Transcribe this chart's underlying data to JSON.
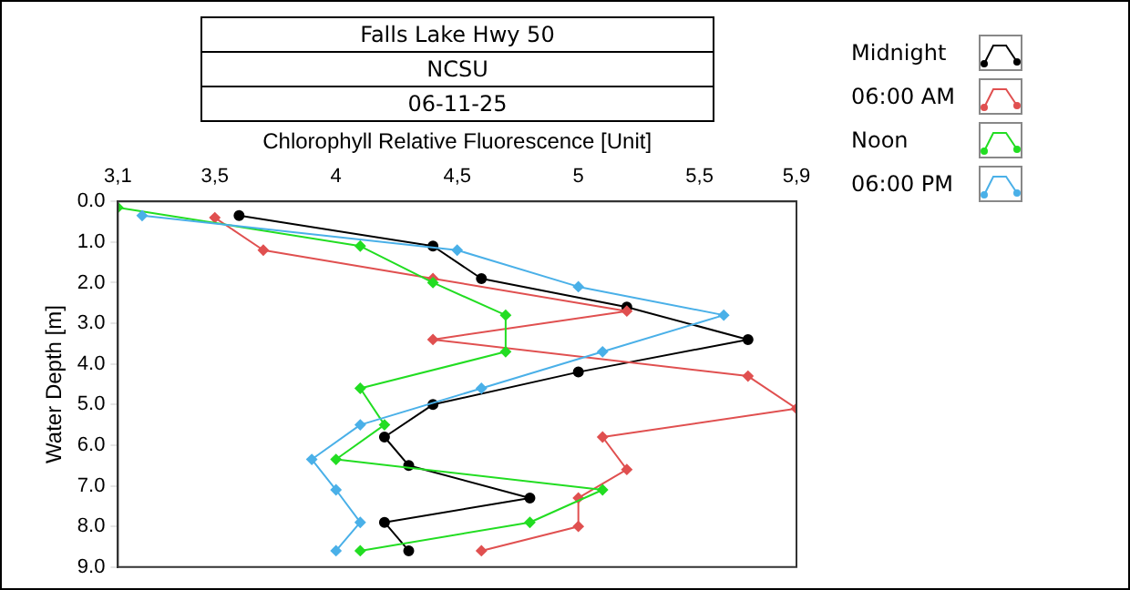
{
  "chart_data": {
    "type": "line",
    "title": "Falls Lake Hwy 50",
    "subtitle": "NCSU",
    "annotations": [
      "06-11-25"
    ],
    "xlabel": "Chlorophyll Relative Fluorescence [Unit]",
    "ylabel": "Water Depth [m]",
    "xlim": [
      3.1,
      5.9
    ],
    "xticks": [
      {
        "value": 3.1,
        "label": "3,1"
      },
      {
        "value": 3.5,
        "label": "3,5"
      },
      4,
      {
        "value": 4.5,
        "label": "4,5"
      },
      5,
      {
        "value": 5.5,
        "label": "5,5"
      },
      {
        "value": 5.9,
        "label": "5,9"
      }
    ],
    "ylim": [
      9,
      0
    ],
    "yticks": [
      {
        "value": 0,
        "label": "0.0"
      },
      {
        "value": 1,
        "label": "1.0"
      },
      {
        "value": 2,
        "label": "2.0"
      },
      {
        "value": 3,
        "label": "3.0"
      },
      {
        "value": 4,
        "label": "4.0"
      },
      {
        "value": 5,
        "label": "5.0"
      },
      {
        "value": 6,
        "label": "6.0"
      },
      {
        "value": 7,
        "label": "7.0"
      },
      {
        "value": 8,
        "label": "8.0"
      },
      {
        "value": 9,
        "label": "9.0"
      }
    ],
    "grid": false,
    "legend": "right",
    "marker": "circle",
    "line_style": "solid",
    "series": [
      {
        "name": "Midnight",
        "color": "#000000",
        "x": [
          3.6,
          4.4,
          4.6,
          5.2,
          5.7,
          5.0,
          4.4,
          4.2,
          4.3,
          4.8,
          4.2,
          4.3
        ],
        "values": [
          0.35,
          1.1,
          1.9,
          2.6,
          3.4,
          4.2,
          5.0,
          5.8,
          6.5,
          7.3,
          7.9,
          8.6
        ]
      },
      {
        "name": "06:00 AM",
        "color": "#e05050",
        "marker": "diamond",
        "x": [
          3.5,
          3.7,
          4.4,
          5.2,
          4.4,
          5.7,
          5.9,
          5.1,
          5.2,
          5.0,
          5.0,
          4.6
        ],
        "values": [
          0.4,
          1.2,
          1.9,
          2.7,
          3.4,
          4.3,
          5.1,
          5.8,
          6.6,
          7.3,
          8.0,
          8.6
        ]
      },
      {
        "name": "Noon",
        "color": "#22dd22",
        "marker": "diamond",
        "x": [
          3.1,
          4.1,
          4.4,
          4.7,
          4.7,
          4.1,
          4.2,
          4.0,
          5.1,
          4.8,
          4.1
        ],
        "values": [
          0.15,
          1.1,
          2.0,
          2.8,
          3.7,
          4.6,
          5.5,
          6.35,
          7.1,
          7.9,
          8.6
        ]
      },
      {
        "name": "06:00 PM",
        "color": "#4ab0e8",
        "marker": "diamond",
        "x": [
          3.2,
          4.5,
          5.0,
          5.6,
          5.1,
          4.6,
          4.1,
          3.9,
          4.0,
          4.1,
          4.0
        ],
        "values": [
          0.35,
          1.2,
          2.1,
          2.8,
          3.7,
          4.6,
          5.5,
          6.35,
          7.1,
          7.9,
          8.6
        ]
      }
    ]
  }
}
